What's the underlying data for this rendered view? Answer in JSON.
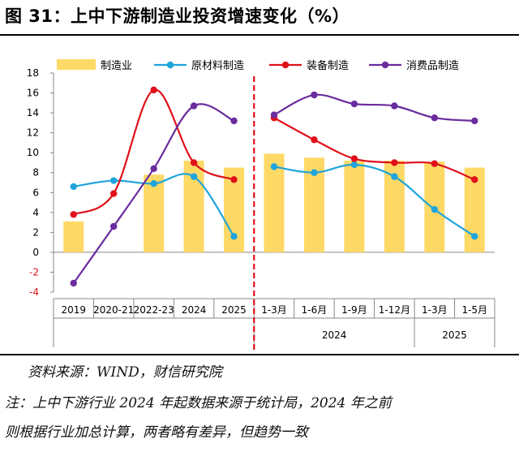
{
  "title": "图 31：上中下游制造业投资增速变化（%）",
  "source": "资料来源：WIND，财信研究院",
  "note_line1": "注：上中下游行业 2024 年起数据来源于统计局，2024 年之前",
  "note_line2": "则根据行业加总计算，两者略有差异，但趋势一致",
  "colors": {
    "bar": "#FFD966",
    "raw": "#1FA4DB",
    "equip": "#E0101A",
    "consumer": "#6A2C9E",
    "divider": "#E0101A"
  },
  "chart_data": {
    "type": "bar",
    "categories": [
      "2019",
      "2020-21",
      "2022-23",
      "2024",
      "2025",
      "1-3月",
      "1-6月",
      "1-9月",
      "1-12月",
      "1-3月",
      "1-5月"
    ],
    "group_labels": [
      "2024",
      "2025"
    ],
    "ylim": [
      -4,
      18
    ],
    "yticks": [
      "18",
      "16",
      "14",
      "12",
      "10",
      "8",
      "6",
      "4",
      "2",
      "0",
      "-2",
      "-4"
    ],
    "series": [
      {
        "name": "制造业",
        "type": "bar",
        "values": [
          3.1,
          null,
          7.8,
          9.2,
          8.5,
          9.9,
          9.5,
          9.2,
          9.2,
          9.1,
          8.5
        ]
      },
      {
        "name": "原材料制造",
        "type": "line",
        "values": [
          6.6,
          7.2,
          6.9,
          7.6,
          1.6,
          8.6,
          8.0,
          8.8,
          7.6,
          4.3,
          1.6
        ]
      },
      {
        "name": "装备制造",
        "type": "line",
        "values": [
          3.8,
          5.9,
          16.3,
          9.0,
          7.3,
          13.5,
          11.3,
          9.4,
          9.0,
          8.9,
          7.3
        ]
      },
      {
        "name": "消费品制造",
        "type": "line",
        "values": [
          -3.1,
          2.6,
          8.4,
          14.7,
          13.2,
          13.8,
          15.8,
          14.9,
          14.7,
          13.5,
          13.2
        ]
      }
    ]
  }
}
